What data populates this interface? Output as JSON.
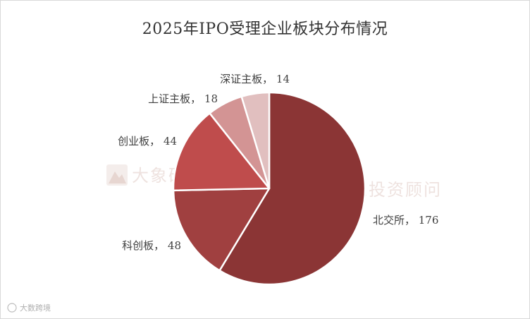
{
  "chart_data": {
    "type": "pie",
    "title": "2025年IPO受理企业板块分布情况",
    "label_separator": "，",
    "slices": [
      {
        "name": "北交所",
        "value": 176,
        "color": "#8b3535"
      },
      {
        "name": "科创板",
        "value": 48,
        "color": "#a04040"
      },
      {
        "name": "创业板",
        "value": 44,
        "color": "#bf4c4c"
      },
      {
        "name": "上证主板",
        "value": 18,
        "color": "#d39494"
      },
      {
        "name": "深证主板",
        "value": 14,
        "color": "#e1bfbf"
      }
    ],
    "start": "top",
    "direction": "clockwise"
  },
  "watermarks": [
    "大象研究院",
    "大象投资顾问"
  ],
  "corner_watermark": "大数跨境",
  "colors": {
    "slice_border": "#ffffff",
    "label_text": "#404040",
    "watermark": "#c49a8e"
  }
}
